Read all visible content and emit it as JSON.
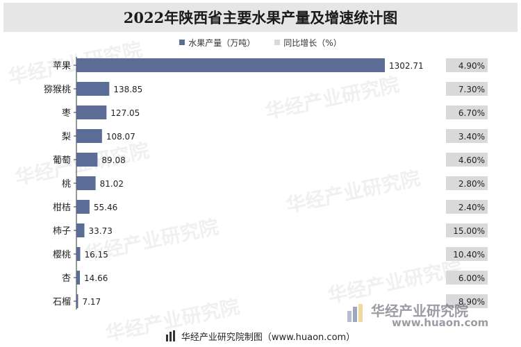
{
  "header": {
    "title": "2022年陕西省主要水果产量及增速统计图"
  },
  "legend": {
    "production_label": "水果产量（万吨）",
    "growth_label": "同比增长（%）"
  },
  "colors": {
    "bar": "#5b6d97",
    "growth_box": "#d9d9d9",
    "title_bg": "#e6e6e6"
  },
  "chart_data": {
    "type": "bar",
    "orientation": "horizontal",
    "categories": [
      "苹果",
      "猕猴桃",
      "枣",
      "梨",
      "葡萄",
      "桃",
      "柑桔",
      "柿子",
      "樱桃",
      "杏",
      "石榴"
    ],
    "series": [
      {
        "name": "水果产量（万吨）",
        "values": [
          1302.71,
          138.85,
          127.05,
          108.07,
          89.08,
          81.02,
          55.46,
          33.73,
          16.15,
          14.66,
          7.17
        ]
      },
      {
        "name": "同比增长（%）",
        "values": [
          4.9,
          7.3,
          6.7,
          3.4,
          4.6,
          2.8,
          2.4,
          15.0,
          10.4,
          6.0,
          8.9
        ]
      }
    ],
    "value_labels": [
      "1302.71",
      "138.85",
      "127.05",
      "108.07",
      "89.08",
      "81.02",
      "55.46",
      "33.73",
      "16.15",
      "14.66",
      "7.17"
    ],
    "growth_labels": [
      "4.90%",
      "7.30%",
      "6.70%",
      "3.40%",
      "4.60%",
      "2.80%",
      "2.40%",
      "15.00%",
      "10.40%",
      "6.00%",
      "8.90%"
    ],
    "title": "2022年陕西省主要水果产量及增速统计图",
    "legend_position": "top-center",
    "grid": false
  },
  "footer": {
    "source": "华经产业研究院制图（www.huaon.com）"
  },
  "brand": {
    "name": "华经产业研究院",
    "url": "www.huaon.com"
  },
  "watermarks": [
    "华经产业研究院",
    "华经产业研究院",
    "华经产业研究院",
    "华经产业研究院",
    "华经产业研究院",
    "华经产业研究院",
    "华经产业研究院"
  ]
}
